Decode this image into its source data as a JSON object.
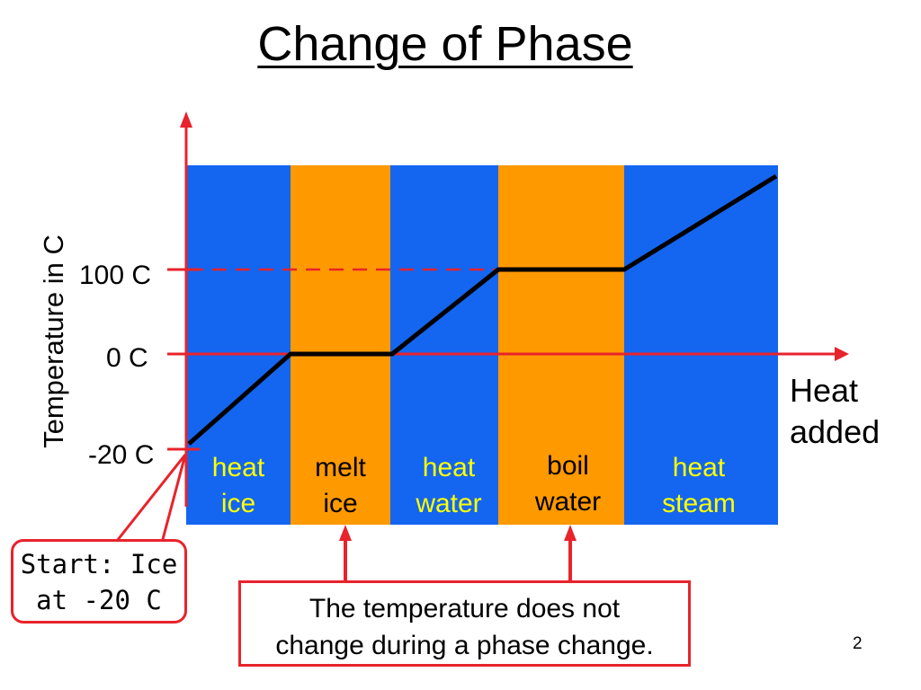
{
  "title": "Change of Phase",
  "y_axis_label": "Temperature in C",
  "x_axis_label_line1": "Heat",
  "x_axis_label_line2": "added",
  "tick_labels": {
    "t100": "100 C",
    "t0": "0 C",
    "tminus20": "-20 C"
  },
  "bands": [
    {
      "line1": "heat",
      "line2": "ice",
      "color": "#1466f0",
      "text_color": "#ffff00"
    },
    {
      "line1": "melt",
      "line2": "ice",
      "color": "#ff9900",
      "text_color": "#000000"
    },
    {
      "line1": "heat",
      "line2": "water",
      "color": "#1466f0",
      "text_color": "#ffff00"
    },
    {
      "line1": "boil",
      "line2": "water",
      "color": "#ff9900",
      "text_color": "#000000"
    },
    {
      "line1": "heat",
      "line2": "steam",
      "color": "#1466f0",
      "text_color": "#ffff00"
    }
  ],
  "start_callout": {
    "line1": "Start: Ice",
    "line2": "at -20 C"
  },
  "note": {
    "line1": "The temperature does not",
    "line2": "change during a phase change."
  },
  "page_number": "2",
  "colors": {
    "axis": "#e8232b",
    "curve": "#000000"
  }
}
